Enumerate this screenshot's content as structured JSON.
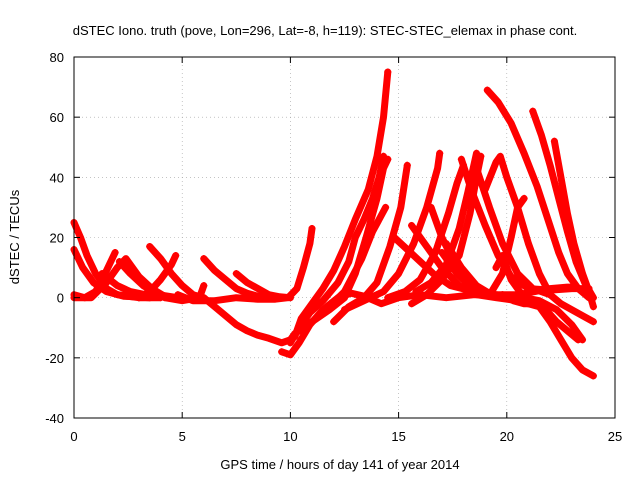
{
  "chart_data": {
    "type": "scatter",
    "title": "dSTEC Iono. truth (pove, Lon=296, Lat=-8, h=119): STEC-STEC_elemax in phase cont.",
    "xlabel": "GPS time / hours of day 141 of year 2014",
    "ylabel": "dSTEC  / TECUs",
    "xlim": [
      0,
      25
    ],
    "ylim": [
      -40,
      80
    ],
    "xticks": [
      "0",
      "5",
      "10",
      "15",
      "20",
      "25"
    ],
    "yticks": [
      "-40",
      "-20",
      "0",
      "20",
      "40",
      "60",
      "80"
    ],
    "grid": true,
    "marker": "plus",
    "color": "#ff0000",
    "arcs": [
      [
        [
          0.0,
          25
        ],
        [
          0.3,
          20
        ],
        [
          0.6,
          14
        ],
        [
          1.0,
          8
        ],
        [
          1.5,
          3
        ],
        [
          2.0,
          1
        ],
        [
          3.0,
          0
        ],
        [
          4.0,
          0
        ]
      ],
      [
        [
          0.0,
          16
        ],
        [
          0.4,
          10
        ],
        [
          0.9,
          5
        ],
        [
          1.5,
          2
        ],
        [
          2.3,
          0.5
        ],
        [
          3.5,
          0
        ]
      ],
      [
        [
          0.0,
          1
        ],
        [
          0.5,
          0
        ],
        [
          1.0,
          2
        ],
        [
          1.5,
          9
        ],
        [
          1.9,
          15
        ]
      ],
      [
        [
          0.0,
          0
        ],
        [
          0.8,
          0
        ],
        [
          1.5,
          5
        ],
        [
          2.0,
          10
        ],
        [
          2.4,
          13
        ],
        [
          3.0,
          7
        ],
        [
          3.6,
          3
        ],
        [
          4.3,
          0
        ]
      ],
      [
        [
          1.3,
          8
        ],
        [
          2.0,
          4
        ],
        [
          2.6,
          2
        ],
        [
          3.3,
          1
        ],
        [
          4.2,
          0.5
        ]
      ],
      [
        [
          2.1,
          12
        ],
        [
          2.6,
          8
        ],
        [
          3.2,
          4
        ],
        [
          3.9,
          1
        ],
        [
          4.8,
          0
        ]
      ],
      [
        [
          3.0,
          0
        ],
        [
          3.5,
          2
        ],
        [
          4.0,
          6
        ],
        [
          4.5,
          11
        ],
        [
          4.7,
          14
        ]
      ],
      [
        [
          3.5,
          17
        ],
        [
          4.0,
          13
        ],
        [
          4.5,
          8
        ],
        [
          5.0,
          4
        ],
        [
          5.5,
          1
        ],
        [
          6.0,
          0
        ]
      ],
      [
        [
          4.2,
          0
        ],
        [
          5.0,
          -1
        ],
        [
          5.8,
          0
        ],
        [
          6.0,
          4
        ]
      ],
      [
        [
          6.0,
          0
        ],
        [
          6.5,
          -3
        ],
        [
          7.0,
          -6
        ],
        [
          7.5,
          -9
        ],
        [
          8.0,
          -11
        ],
        [
          8.5,
          -12.5
        ],
        [
          9.0,
          -13.5
        ],
        [
          9.6,
          -15
        ],
        [
          10.0,
          -14
        ],
        [
          10.2,
          -12
        ]
      ],
      [
        [
          6.0,
          13
        ],
        [
          6.5,
          9
        ],
        [
          7.0,
          6
        ],
        [
          7.5,
          3
        ],
        [
          8.0,
          1.5
        ],
        [
          8.5,
          0.5
        ],
        [
          9.2,
          0
        ]
      ],
      [
        [
          7.5,
          8
        ],
        [
          8.0,
          5
        ],
        [
          8.5,
          3
        ],
        [
          9.0,
          1
        ],
        [
          9.5,
          0.3
        ],
        [
          10.0,
          0
        ]
      ],
      [
        [
          4.8,
          1
        ],
        [
          5.5,
          -1
        ],
        [
          6.5,
          -1
        ],
        [
          7.5,
          0
        ],
        [
          8.5,
          -0.5
        ],
        [
          9.3,
          -0.5
        ],
        [
          9.9,
          0
        ],
        [
          10.3,
          3
        ],
        [
          10.6,
          10
        ],
        [
          10.9,
          18
        ],
        [
          11.0,
          23
        ]
      ],
      [
        [
          9.6,
          -18
        ],
        [
          10.0,
          -19
        ],
        [
          10.4,
          -15
        ],
        [
          10.9,
          -9
        ],
        [
          11.5,
          -4
        ],
        [
          12.2,
          0
        ],
        [
          12.8,
          1.5
        ],
        [
          13.4,
          0.5
        ],
        [
          14.2,
          -2
        ],
        [
          15.0,
          0
        ],
        [
          16.0,
          1
        ],
        [
          17.2,
          0
        ],
        [
          18.5,
          1
        ],
        [
          19.5,
          1
        ],
        [
          20.5,
          1
        ],
        [
          21.3,
          2
        ],
        [
          22.0,
          3
        ],
        [
          22.8,
          3.5
        ],
        [
          23.2,
          3.5
        ]
      ],
      [
        [
          10.0,
          -15
        ],
        [
          10.4,
          -10
        ],
        [
          10.9,
          -5
        ],
        [
          11.5,
          -1
        ],
        [
          12.2,
          5
        ],
        [
          12.7,
          12
        ],
        [
          13.0,
          20
        ],
        [
          13.4,
          26
        ],
        [
          13.8,
          33
        ],
        [
          14.1,
          40
        ],
        [
          14.3,
          47
        ]
      ],
      [
        [
          10.2,
          -13
        ],
        [
          10.5,
          -7
        ],
        [
          11.0,
          -2
        ],
        [
          11.5,
          3
        ],
        [
          12.0,
          9
        ],
        [
          12.5,
          17
        ],
        [
          13.0,
          26
        ],
        [
          13.6,
          36
        ],
        [
          14.0,
          47
        ],
        [
          14.3,
          60
        ],
        [
          14.5,
          75
        ]
      ],
      [
        [
          10.2,
          -12
        ],
        [
          11.0,
          -8
        ],
        [
          11.8,
          -4
        ],
        [
          12.5,
          0
        ],
        [
          13.0,
          8
        ],
        [
          13.5,
          20
        ],
        [
          14.0,
          33
        ],
        [
          14.3,
          43
        ],
        [
          14.5,
          46
        ]
      ],
      [
        [
          10.5,
          -11
        ],
        [
          11.5,
          -5
        ],
        [
          12.5,
          2
        ],
        [
          13.3,
          13
        ],
        [
          13.8,
          22
        ],
        [
          14.4,
          30
        ]
      ],
      [
        [
          12.0,
          -8
        ],
        [
          12.7,
          -3
        ],
        [
          13.4,
          0
        ],
        [
          14.0,
          5
        ],
        [
          14.6,
          17
        ],
        [
          15.1,
          30
        ],
        [
          15.4,
          44
        ]
      ],
      [
        [
          12.5,
          -4
        ],
        [
          13.4,
          -1
        ],
        [
          14.3,
          2
        ],
        [
          15.0,
          8
        ],
        [
          15.7,
          18
        ],
        [
          16.3,
          30
        ],
        [
          16.8,
          43
        ],
        [
          16.9,
          48
        ]
      ],
      [
        [
          14.5,
          0
        ],
        [
          15.3,
          2
        ],
        [
          16.0,
          6
        ],
        [
          16.7,
          15
        ],
        [
          17.3,
          28
        ],
        [
          17.7,
          38
        ],
        [
          18.0,
          44
        ]
      ],
      [
        [
          15.8,
          2
        ],
        [
          16.5,
          5
        ],
        [
          17.2,
          11
        ],
        [
          17.8,
          23
        ],
        [
          18.2,
          35
        ],
        [
          18.6,
          48
        ]
      ],
      [
        [
          15.6,
          -2
        ],
        [
          16.3,
          1
        ],
        [
          17.0,
          6
        ],
        [
          17.8,
          14
        ],
        [
          18.3,
          28
        ],
        [
          18.6,
          40
        ],
        [
          18.8,
          47
        ]
      ],
      [
        [
          14.8,
          20
        ],
        [
          15.4,
          16
        ],
        [
          16.0,
          12
        ],
        [
          16.6,
          8
        ],
        [
          17.4,
          4
        ],
        [
          18.5,
          2
        ],
        [
          19.5,
          1
        ],
        [
          20.5,
          0
        ]
      ],
      [
        [
          15.6,
          24
        ],
        [
          16.3,
          17
        ],
        [
          17.0,
          10
        ],
        [
          17.8,
          4
        ],
        [
          18.6,
          1
        ],
        [
          19.5,
          0
        ],
        [
          20.5,
          -1
        ]
      ],
      [
        [
          16.5,
          30
        ],
        [
          17.0,
          20
        ],
        [
          17.7,
          10
        ],
        [
          18.5,
          4
        ],
        [
          19.3,
          1
        ],
        [
          20.2,
          0
        ]
      ],
      [
        [
          17.0,
          15
        ],
        [
          17.7,
          8
        ],
        [
          18.4,
          3
        ],
        [
          19.2,
          0.5
        ],
        [
          20.5,
          0
        ]
      ],
      [
        [
          17.2,
          18
        ],
        [
          17.9,
          10
        ],
        [
          18.6,
          4
        ],
        [
          19.3,
          1
        ],
        [
          20.1,
          0.5
        ]
      ],
      [
        [
          17.9,
          46
        ],
        [
          18.4,
          35
        ],
        [
          19.0,
          24
        ],
        [
          19.6,
          14
        ],
        [
          20.2,
          7
        ],
        [
          21.0,
          3
        ],
        [
          22.0,
          2.5
        ],
        [
          23.0,
          3
        ],
        [
          23.8,
          3
        ]
      ],
      [
        [
          18.6,
          43
        ],
        [
          19.2,
          30
        ],
        [
          19.8,
          18
        ],
        [
          20.5,
          8
        ],
        [
          21.2,
          3
        ],
        [
          22.0,
          1
        ]
      ],
      [
        [
          19.1,
          69
        ],
        [
          19.6,
          65
        ],
        [
          20.2,
          58
        ],
        [
          20.8,
          48
        ],
        [
          21.4,
          37
        ],
        [
          21.9,
          26
        ],
        [
          22.4,
          15
        ],
        [
          22.8,
          8
        ],
        [
          23.3,
          3
        ],
        [
          23.8,
          0
        ]
      ],
      [
        [
          21.2,
          62
        ],
        [
          21.6,
          54
        ],
        [
          22.0,
          44
        ],
        [
          22.4,
          33
        ],
        [
          22.8,
          22
        ],
        [
          23.2,
          12
        ],
        [
          23.6,
          5
        ],
        [
          24.0,
          0
        ]
      ],
      [
        [
          22.2,
          52
        ],
        [
          22.5,
          40
        ],
        [
          22.8,
          28
        ],
        [
          23.1,
          18
        ],
        [
          23.5,
          8
        ],
        [
          23.8,
          2
        ],
        [
          24.0,
          -3
        ]
      ],
      [
        [
          19.0,
          36
        ],
        [
          19.5,
          45
        ],
        [
          19.7,
          47
        ],
        [
          20.0,
          40
        ],
        [
          20.5,
          30
        ],
        [
          21.0,
          18
        ],
        [
          21.5,
          8
        ],
        [
          22.0,
          1
        ],
        [
          22.5,
          -2
        ],
        [
          23.0,
          -4
        ],
        [
          23.5,
          -6
        ],
        [
          24.0,
          -8
        ]
      ],
      [
        [
          19.3,
          2
        ],
        [
          19.8,
          8
        ],
        [
          20.2,
          20
        ],
        [
          20.5,
          30
        ],
        [
          20.8,
          33
        ]
      ],
      [
        [
          19.5,
          10
        ],
        [
          19.8,
          14
        ],
        [
          20.2,
          6
        ],
        [
          20.8,
          0
        ],
        [
          21.5,
          -1
        ],
        [
          22.3,
          -4
        ],
        [
          23.0,
          -9
        ],
        [
          23.5,
          -14
        ]
      ],
      [
        [
          20.5,
          -1
        ],
        [
          21.0,
          -2
        ],
        [
          21.5,
          -3
        ],
        [
          22.0,
          -8
        ],
        [
          22.5,
          -14
        ],
        [
          23.0,
          -20
        ],
        [
          23.5,
          -24
        ],
        [
          24.0,
          -26
        ]
      ],
      [
        [
          19.8,
          1
        ],
        [
          20.3,
          -1
        ],
        [
          20.8,
          -2
        ],
        [
          21.3,
          -2
        ],
        [
          21.8,
          -4
        ],
        [
          22.3,
          -8
        ],
        [
          22.8,
          -11
        ],
        [
          23.3,
          -14
        ]
      ]
    ]
  }
}
